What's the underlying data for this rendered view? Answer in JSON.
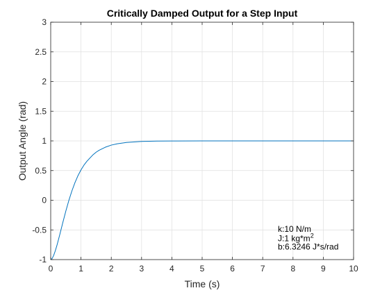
{
  "chart_data": {
    "type": "line",
    "title": "Critically Damped Output for a Step Input",
    "xlabel": "Time (s)",
    "ylabel": "Output Angle (rad)",
    "xlim": [
      0,
      10
    ],
    "ylim": [
      -1,
      3
    ],
    "xticks": [
      0,
      1,
      2,
      3,
      4,
      5,
      6,
      7,
      8,
      9,
      10
    ],
    "yticks": [
      -1,
      -0.5,
      0,
      0.5,
      1,
      1.5,
      2,
      2.5,
      3
    ],
    "grid": true,
    "legend": "none",
    "series": [
      {
        "color": "#0072BD",
        "x": [
          0,
          0.05,
          0.1,
          0.15,
          0.2,
          0.25,
          0.3,
          0.35,
          0.4,
          0.5,
          0.6,
          0.7,
          0.8,
          0.9,
          1.0,
          1.1,
          1.2,
          1.3,
          1.4,
          1.5,
          1.6,
          1.8,
          2.0,
          2.2,
          2.5,
          3.0,
          3.5,
          4.0,
          5.0,
          6.0,
          7.0,
          8.0,
          9.0,
          10.0
        ],
        "y": [
          -1.0,
          -0.979,
          -0.926,
          -0.854,
          -0.77,
          -0.676,
          -0.577,
          -0.477,
          -0.376,
          -0.182,
          -0.002,
          0.158,
          0.296,
          0.414,
          0.512,
          0.594,
          0.66,
          0.714,
          0.768,
          0.81,
          0.843,
          0.893,
          0.929,
          0.952,
          0.974,
          0.991,
          0.997,
          0.999,
          1.0,
          1.0,
          1.0,
          1.0,
          1.0,
          1.0
        ]
      }
    ],
    "annotations": [
      {
        "parts": [
          {
            "text": "k:10 N/m"
          }
        ],
        "x": 7.5,
        "y": -0.53
      },
      {
        "parts": [
          {
            "text": "J:1 kg*m"
          },
          {
            "text": "2",
            "sup": true
          }
        ],
        "x": 7.5,
        "y": -0.69
      },
      {
        "parts": [
          {
            "text": "b:6.3246 J*s/rad"
          }
        ],
        "x": 7.5,
        "y": -0.83
      }
    ]
  }
}
